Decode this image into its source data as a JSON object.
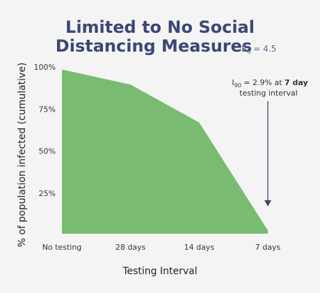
{
  "chart_data": {
    "type": "area",
    "title_line1": "Limited to No Social",
    "title_line2": "Distancing Measures",
    "r0_label": "R",
    "r0_sub": "0",
    "r0_value": " = 4.5",
    "xlabel": "Testing Interval",
    "ylabel": "% of population infected (cumulative)",
    "categories": [
      "No testing",
      "28 days",
      "14 days",
      "7 days"
    ],
    "values": [
      98.5,
      89.5,
      67,
      2.9
    ],
    "ylim": [
      0,
      100
    ],
    "yticks": [
      25,
      50,
      75,
      100
    ],
    "ytick_labels": [
      "25%",
      "50%",
      "75%",
      "100%"
    ],
    "fill_color": "#79bb71",
    "arrow_color": "#3b4774",
    "annotation": {
      "prefix": "I",
      "sub": "90",
      "middle": " = 2.9% at ",
      "bold": "7 day",
      "line2": "testing interval"
    }
  }
}
